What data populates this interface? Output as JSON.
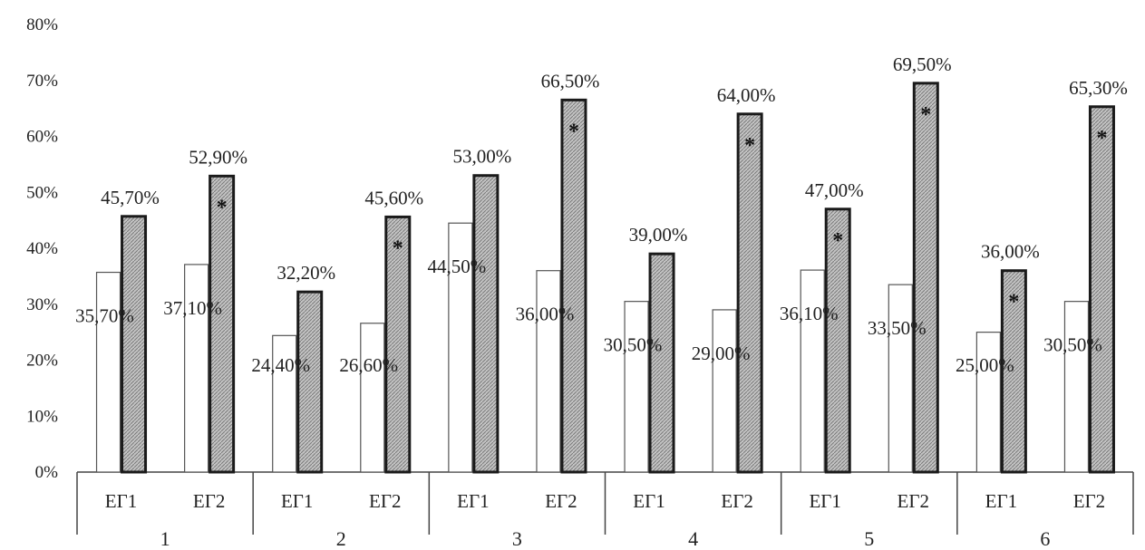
{
  "chart_data": {
    "type": "bar",
    "title": "",
    "xlabel": "",
    "ylabel": "",
    "ylim": [
      0,
      80
    ],
    "ytick_labels": [
      "0%",
      "10%",
      "20%",
      "30%",
      "40%",
      "50%",
      "60%",
      "70%",
      "80%"
    ],
    "yticks": [
      0,
      10,
      20,
      30,
      40,
      50,
      60,
      70,
      80
    ],
    "grid": false,
    "legend": "none",
    "fill_colors": [
      "#ffffff",
      "#b8b8b8"
    ],
    "significance_marker": "*",
    "groups": [
      {
        "label": "1",
        "categories": [
          {
            "label": "ЕГ1",
            "values": [
              35.7,
              45.7
            ],
            "labels": [
              "35,70%",
              "45,70%"
            ],
            "significant": false
          },
          {
            "label": "ЕГ2",
            "values": [
              37.1,
              52.9
            ],
            "labels": [
              "37,10%",
              "52,90%"
            ],
            "significant": true
          }
        ]
      },
      {
        "label": "2",
        "categories": [
          {
            "label": "ЕГ1",
            "values": [
              24.4,
              32.2
            ],
            "labels": [
              "24,40%",
              "32,20%"
            ],
            "significant": false
          },
          {
            "label": "ЕГ2",
            "values": [
              26.6,
              45.6
            ],
            "labels": [
              "26,60%",
              "45,60%"
            ],
            "significant": true
          }
        ]
      },
      {
        "label": "3",
        "categories": [
          {
            "label": "ЕГ1",
            "values": [
              44.5,
              53.0
            ],
            "labels": [
              "44,50%",
              "53,00%"
            ],
            "significant": false
          },
          {
            "label": "ЕГ2",
            "values": [
              36.0,
              66.5
            ],
            "labels": [
              "36,00%",
              "66,50%"
            ],
            "significant": true
          }
        ]
      },
      {
        "label": "4",
        "categories": [
          {
            "label": "ЕГ1",
            "values": [
              30.5,
              39.0
            ],
            "labels": [
              "30,50%",
              "39,00%"
            ],
            "significant": false
          },
          {
            "label": "ЕГ2",
            "values": [
              29.0,
              64.0
            ],
            "labels": [
              "29,00%",
              "64,00%"
            ],
            "significant": true
          }
        ]
      },
      {
        "label": "5",
        "categories": [
          {
            "label": "ЕГ1",
            "values": [
              36.1,
              47.0
            ],
            "labels": [
              "36,10%",
              "47,00%"
            ],
            "significant": true
          },
          {
            "label": "ЕГ2",
            "values": [
              33.5,
              69.5
            ],
            "labels": [
              "33,50%",
              "69,50%"
            ],
            "significant": true
          }
        ]
      },
      {
        "label": "6",
        "categories": [
          {
            "label": "ЕГ1",
            "values": [
              25.0,
              36.0
            ],
            "labels": [
              "25,00%",
              "36,00%"
            ],
            "significant": true
          },
          {
            "label": "ЕГ2",
            "values": [
              30.5,
              65.3
            ],
            "labels": [
              "30,50%",
              "65,30%"
            ],
            "significant": true
          }
        ]
      }
    ]
  }
}
